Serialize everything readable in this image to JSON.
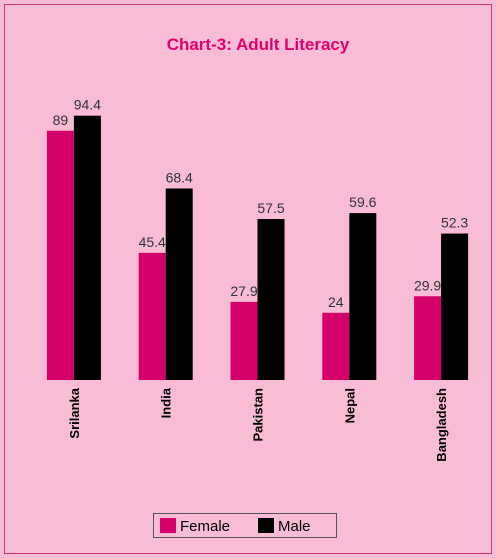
{
  "chart_data": {
    "type": "bar",
    "title": "Chart-3: Adult Literacy",
    "categories": [
      "Srilanka",
      "India",
      "Pakistan",
      "Nepal",
      "Bangladesh"
    ],
    "series": [
      {
        "name": "Female",
        "color": "#d6006b",
        "values": [
          89,
          45.4,
          27.9,
          24,
          29.9
        ]
      },
      {
        "name": "Male",
        "color": "#000000",
        "values": [
          94.4,
          68.4,
          57.5,
          59.6,
          52.3
        ]
      }
    ],
    "ylim": [
      0,
      100
    ],
    "legend": "bottom"
  }
}
